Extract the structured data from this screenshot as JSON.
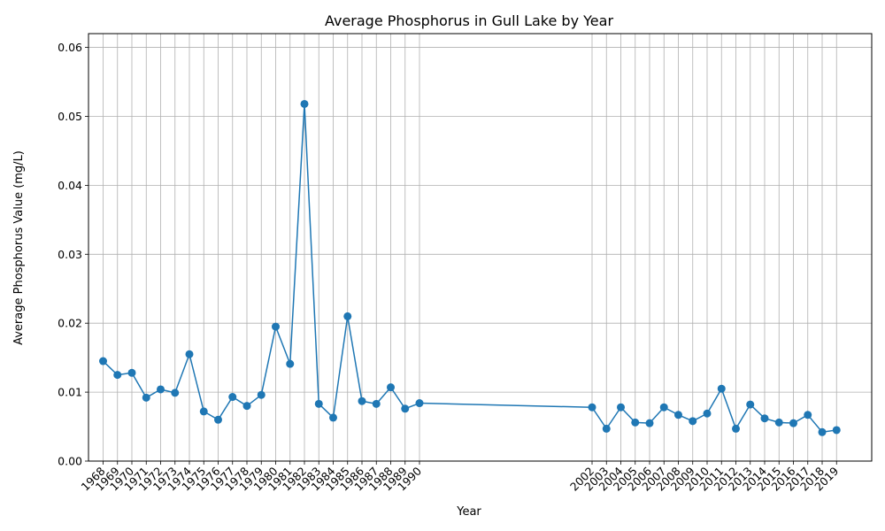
{
  "chart_data": {
    "type": "line",
    "title": "Average Phosphorus in Gull Lake by Year",
    "xlabel": "Year",
    "ylabel": "Average Phosphorus Value (mg/L)",
    "ylim": [
      0,
      0.062
    ],
    "y_ticks": [
      "0.00",
      "0.01",
      "0.02",
      "0.03",
      "0.04",
      "0.05",
      "0.06"
    ],
    "y_tick_values": [
      0,
      0.01,
      0.02,
      0.03,
      0.04,
      0.05,
      0.06
    ],
    "grid": true,
    "line_color": "#1f77b4",
    "x": [
      "1968",
      "1969",
      "1970",
      "1971",
      "1972",
      "1973",
      "1974",
      "1975",
      "1976",
      "1977",
      "1978",
      "1979",
      "1980",
      "1981",
      "1982",
      "1983",
      "1984",
      "1985",
      "1986",
      "1987",
      "1988",
      "1989",
      "1990",
      "2002",
      "2003",
      "2004",
      "2005",
      "2006",
      "2007",
      "2008",
      "2009",
      "2010",
      "2011",
      "2012",
      "2013",
      "2014",
      "2015",
      "2016",
      "2017",
      "2018",
      "2019"
    ],
    "series": [
      {
        "values": [
          0.0145,
          0.0125,
          0.0128,
          0.0092,
          0.0104,
          0.0099,
          0.0155,
          0.0072,
          0.006,
          0.0093,
          0.008,
          0.0096,
          0.0195,
          0.0141,
          0.0518,
          0.0083,
          0.0063,
          0.021,
          0.0087,
          0.0083,
          0.0107,
          0.0076,
          0.0084,
          0.0078,
          0.0047,
          0.0078,
          0.0056,
          0.0055,
          0.0078,
          0.0067,
          0.0058,
          0.0069,
          0.0105,
          0.0047,
          0.0082,
          0.0062,
          0.0056,
          0.0055,
          0.0067,
          0.0042,
          0.0045
        ]
      }
    ]
  }
}
